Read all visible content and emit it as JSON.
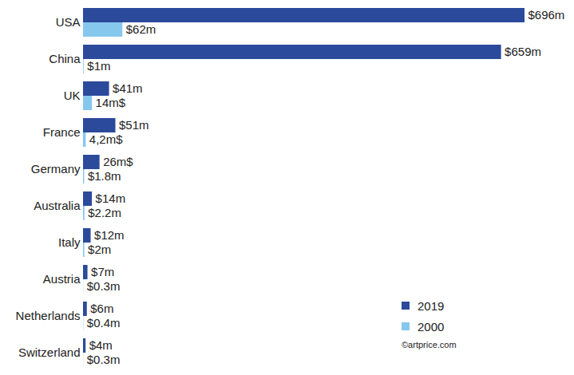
{
  "chart_data": {
    "type": "bar",
    "orientation": "horizontal",
    "categories": [
      "USA",
      "China",
      "UK",
      "France",
      "Germany",
      "Australia",
      "Italy",
      "Austria",
      "Netherlands",
      "Switzerland"
    ],
    "series": [
      {
        "name": "2019",
        "color": "#2b4a9b",
        "values": [
          696,
          659,
          41,
          51,
          26,
          14,
          12,
          7,
          6,
          4
        ],
        "value_labels": [
          "$696m",
          "$659m",
          "$41m",
          "$51m",
          "26m$",
          "$14m",
          "$12m",
          "$7m",
          "$6m",
          "$4m"
        ]
      },
      {
        "name": "2000",
        "color": "#86c7ee",
        "values": [
          62,
          1,
          14,
          4.2,
          1.8,
          2.2,
          2,
          0.3,
          0.4,
          0.3
        ],
        "value_labels": [
          "$62m",
          "$1m",
          "14m$",
          "4,2m$",
          "$1.8m",
          "$2.2m",
          "$2m",
          "$0.3m",
          "$0.4m",
          "$0.3m"
        ]
      }
    ],
    "data_labels": true,
    "tick_labels": "y",
    "grid": false,
    "legend": "bottom-right",
    "caption": "©artprice.com"
  }
}
